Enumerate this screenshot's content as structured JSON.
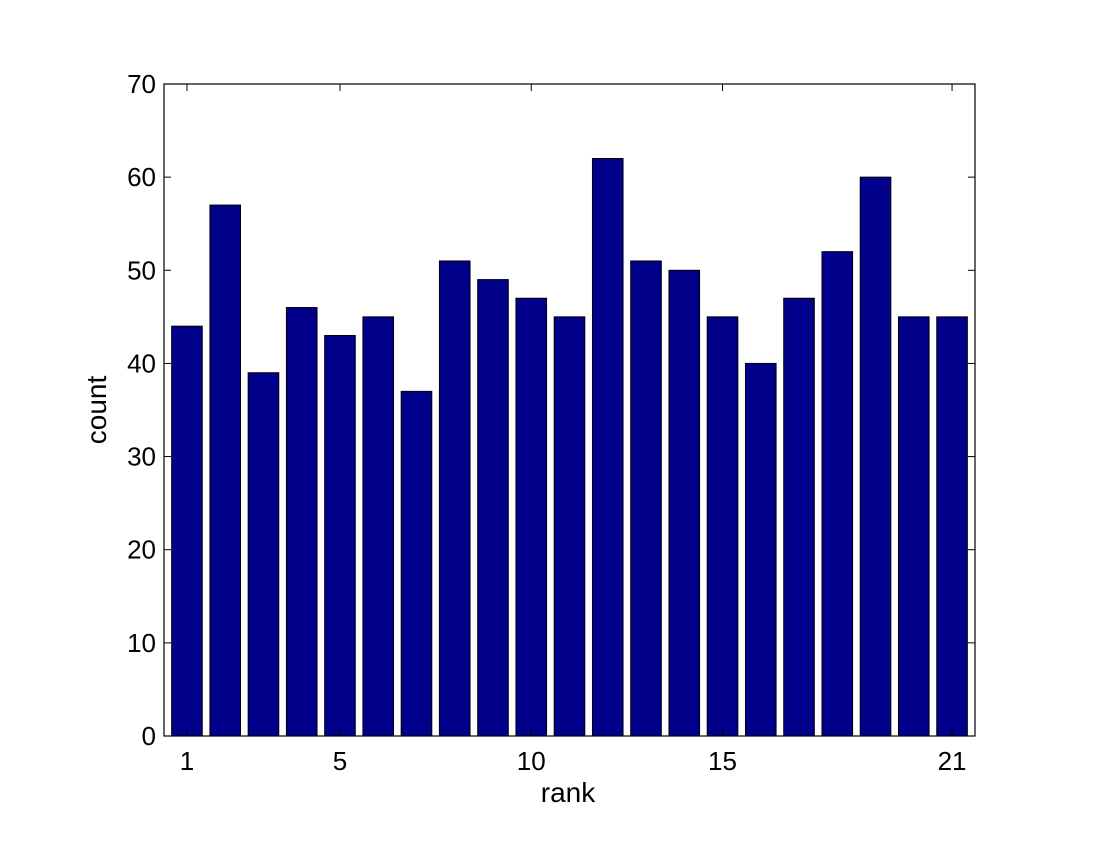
{
  "chart_data": {
    "type": "bar",
    "categories": [
      1,
      2,
      3,
      4,
      5,
      6,
      7,
      8,
      9,
      10,
      11,
      12,
      13,
      14,
      15,
      16,
      17,
      18,
      19,
      20,
      21
    ],
    "values": [
      44,
      57,
      39,
      46,
      43,
      45,
      37,
      51,
      49,
      47,
      45,
      62,
      51,
      50,
      45,
      40,
      47,
      52,
      60,
      45,
      45
    ],
    "xlabel": "rank",
    "ylabel": "count",
    "ylim": [
      0,
      70
    ],
    "xlim": [
      0.4,
      21.6
    ],
    "yticks": [
      0,
      10,
      20,
      30,
      40,
      50,
      60,
      70
    ],
    "xticks": [
      1,
      5,
      10,
      15,
      21
    ],
    "bar_color": "#00008B",
    "grid": false,
    "legend": "none"
  }
}
